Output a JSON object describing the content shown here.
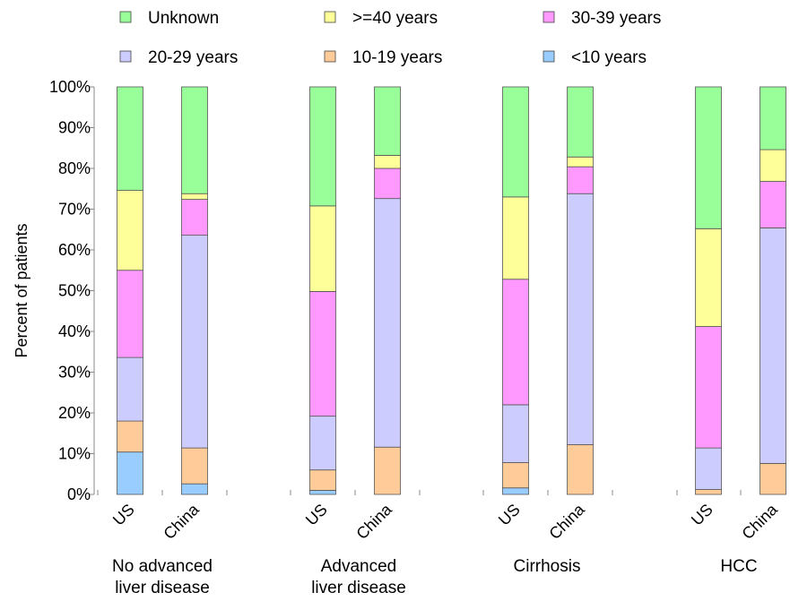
{
  "chart_data": {
    "type": "bar",
    "stacked": true,
    "normalized": true,
    "ylabel": "Percent of patients",
    "ylim": [
      0,
      100
    ],
    "yticks": [
      "0%",
      "10%",
      "20%",
      "30%",
      "40%",
      "50%",
      "60%",
      "70%",
      "80%",
      "90%",
      "100%"
    ],
    "legend": {
      "placement": "top",
      "entries": [
        {
          "name": "Unknown",
          "color": "#99ff99"
        },
        {
          "name": ">=40 years",
          "color": "#ffff99"
        },
        {
          "name": "30-39 years",
          "color": "#ff99ff"
        },
        {
          "name": "20-29 years",
          "color": "#ccccff"
        },
        {
          "name": "10-19 years",
          "color": "#ffcc99"
        },
        {
          "name": "<10 years",
          "color": "#99ccff"
        }
      ]
    },
    "stack_order": [
      "<10 years",
      "10-19 years",
      "20-29 years",
      "30-39 years",
      ">=40 years",
      "Unknown"
    ],
    "groups": [
      {
        "label": [
          "No advanced",
          "liver disease"
        ],
        "bars": [
          {
            "category": "US",
            "values": {
              "<10 years": 10.4,
              "10-19 years": 7.6,
              "20-29 years": 15.6,
              "30-39 years": 21.4,
              ">=40 years": 19.6,
              "Unknown": 25.4
            }
          },
          {
            "category": "China",
            "values": {
              "<10 years": 2.6,
              "10-19 years": 8.8,
              "20-29 years": 52.2,
              "30-39 years": 8.8,
              ">=40 years": 1.4,
              "Unknown": 26.2
            }
          }
        ]
      },
      {
        "label": [
          "Advanced",
          "liver disease"
        ],
        "bars": [
          {
            "category": "US",
            "values": {
              "<10 years": 1.0,
              "10-19 years": 5.0,
              "20-29 years": 13.2,
              "30-39 years": 30.6,
              ">=40 years": 21.0,
              "Unknown": 29.2
            }
          },
          {
            "category": "China",
            "values": {
              "<10 years": 0.0,
              "10-19 years": 11.6,
              "20-29 years": 61.0,
              "30-39 years": 7.4,
              ">=40 years": 3.2,
              "Unknown": 16.8
            }
          }
        ]
      },
      {
        "label": [
          "Cirrhosis"
        ],
        "bars": [
          {
            "category": "US",
            "values": {
              "<10 years": 1.6,
              "10-19 years": 6.2,
              "20-29 years": 14.2,
              "30-39 years": 30.8,
              ">=40 years": 20.2,
              "Unknown": 27.0
            }
          },
          {
            "category": "China",
            "values": {
              "<10 years": 0.0,
              "10-19 years": 12.2,
              "20-29 years": 61.6,
              "30-39 years": 6.6,
              ">=40 years": 2.4,
              "Unknown": 17.2
            }
          }
        ]
      },
      {
        "label": [
          "HCC"
        ],
        "bars": [
          {
            "category": "US",
            "values": {
              "<10 years": 0.0,
              "10-19 years": 1.2,
              "20-29 years": 10.2,
              "30-39 years": 29.8,
              ">=40 years": 24.0,
              "Unknown": 34.8
            }
          },
          {
            "category": "China",
            "values": {
              "<10 years": 0.0,
              "10-19 years": 7.6,
              "20-29 years": 57.8,
              "30-39 years": 11.4,
              ">=40 years": 7.8,
              "Unknown": 15.4
            }
          }
        ]
      }
    ],
    "grid": false
  }
}
